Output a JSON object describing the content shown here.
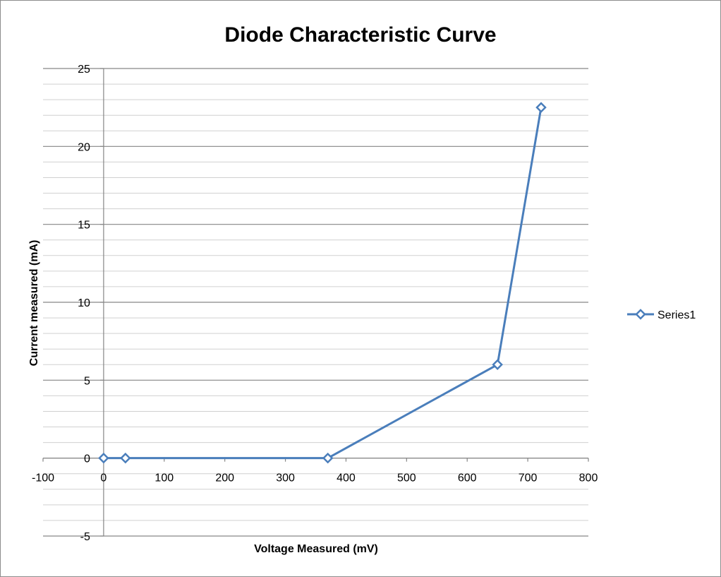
{
  "chart_data": {
    "type": "scatter",
    "title": "Diode Characteristic Curve",
    "xlabel": "Voltage Measured (mV)",
    "ylabel": "Current measured (mA)",
    "xlim": [
      -100,
      800
    ],
    "ylim": [
      -5,
      25
    ],
    "x_ticks": [
      -100,
      0,
      100,
      200,
      300,
      400,
      500,
      600,
      700,
      800
    ],
    "y_ticks": [
      -5,
      0,
      5,
      10,
      15,
      20,
      25
    ],
    "y_minor_step": 1,
    "grid": true,
    "legend": "right",
    "series": [
      {
        "name": "Series1",
        "color": "#4a7ebb",
        "marker": "diamond-open",
        "x": [
          0,
          36,
          370,
          650,
          722
        ],
        "y": [
          0,
          0,
          0,
          6,
          22.5
        ]
      }
    ]
  }
}
